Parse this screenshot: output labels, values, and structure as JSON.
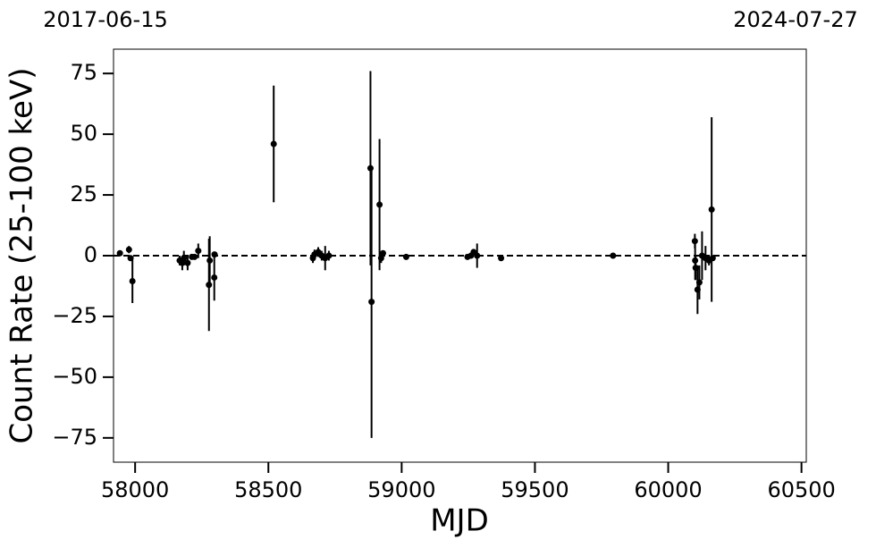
{
  "chart_data": {
    "type": "errorbar",
    "xlabel": "MJD",
    "ylabel": "Count Rate (25-100 keV)",
    "top_labels": [
      "2017-06-15",
      "2024-07-27"
    ],
    "xlim": [
      57919,
      60518
    ],
    "ylim": [
      -85,
      85
    ],
    "xticks": [
      58000,
      58500,
      59000,
      59500,
      60000,
      60500
    ],
    "yticks": [
      {
        "value": -75,
        "label": "−75"
      },
      {
        "value": -50,
        "label": "−50"
      },
      {
        "value": -25,
        "label": "−25"
      },
      0,
      25,
      50,
      75
    ],
    "reference_line": 0,
    "color": "#000000",
    "x": [
      57943,
      57977,
      57983,
      57990,
      58167,
      58177,
      58183,
      58197,
      58213,
      58223,
      58237,
      58277,
      58280,
      58297,
      58298,
      58520,
      58667,
      58673,
      58687,
      58700,
      58713,
      58727,
      58883,
      58887,
      58917,
      58923,
      58930,
      59017,
      59247,
      59260,
      59270,
      59283,
      59373,
      59793,
      60100,
      60101,
      60103,
      60110,
      60117,
      60127,
      60140,
      60153,
      60163,
      60167
    ],
    "values": [
      1,
      2.5,
      -1,
      -10.5,
      -2,
      -3,
      -1,
      -3,
      -0.5,
      -0.5,
      2,
      -12,
      -2,
      -9,
      0.5,
      46,
      -1,
      0.5,
      1.5,
      0,
      -1,
      0,
      36,
      -19,
      21,
      -1,
      1,
      -0.5,
      -0.5,
      0,
      1.5,
      0,
      -1,
      0,
      6,
      -2,
      -5,
      -14,
      -11,
      0,
      -1,
      -2,
      19,
      -1
    ],
    "errors": [
      1,
      1.5,
      1,
      9,
      2,
      3,
      3,
      3,
      1,
      1,
      3,
      19,
      10,
      9.5,
      1,
      24,
      2,
      2,
      2,
      2,
      5,
      2,
      40,
      56,
      27,
      2,
      1,
      1,
      1,
      1,
      1,
      5,
      0.5,
      0.5,
      3,
      8,
      5,
      10,
      7,
      10,
      5,
      2,
      38,
      1
    ]
  }
}
